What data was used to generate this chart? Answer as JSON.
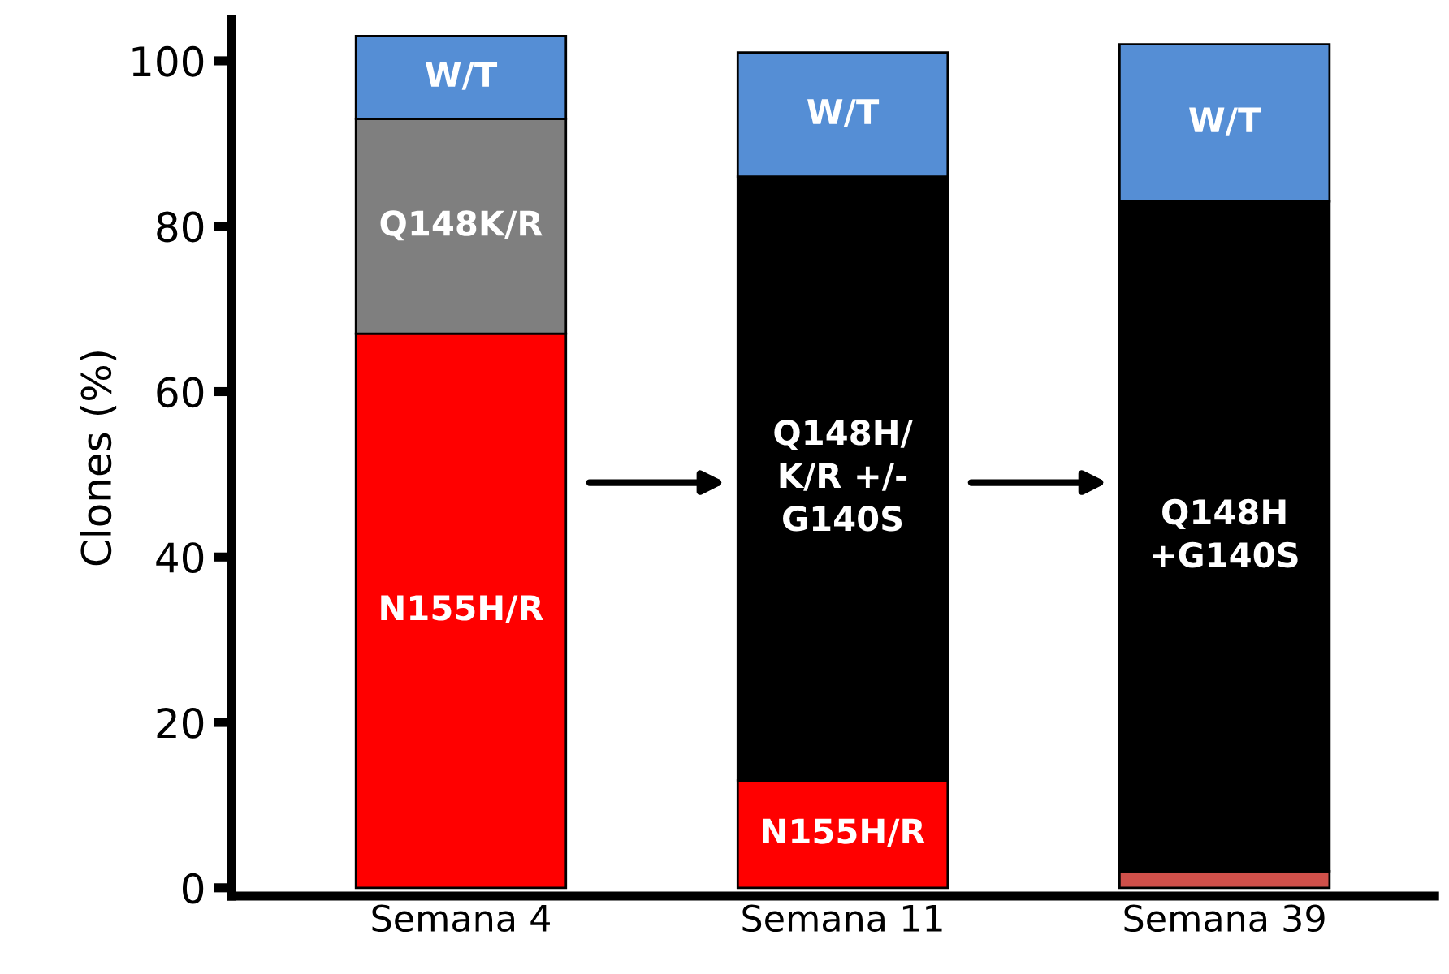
{
  "chart_data": {
    "type": "bar",
    "stacked": true,
    "ylabel": "Clones (%)",
    "categories": [
      "Semana 4",
      "Semana 11",
      "Semana 39"
    ],
    "series": [
      {
        "color": "#ff0000",
        "colors": [
          "#ff0000",
          "#ff0000",
          "#d0504a"
        ],
        "values": [
          67,
          13,
          2
        ],
        "value_labels": [
          "N155H/R",
          "N155H/R",
          null
        ]
      },
      {
        "color": "#7f7f7f",
        "values": [
          26,
          null,
          null
        ],
        "value_labels": [
          "Q148K/R",
          null,
          null
        ]
      },
      {
        "color": "#000000",
        "values": [
          null,
          73,
          81
        ],
        "value_labels": [
          null,
          "Q148H/\nK/R +/-\nG140S",
          "Q148H\n+G140S"
        ]
      },
      {
        "color": "#558ed5",
        "values": [
          10,
          15,
          19
        ],
        "value_labels": [
          "W/T",
          "W/T",
          "W/T"
        ]
      }
    ],
    "ylim": [
      -1,
      105
    ],
    "yticks": [
      0,
      20,
      40,
      60,
      80,
      100
    ],
    "grid": false,
    "legend": false
  }
}
